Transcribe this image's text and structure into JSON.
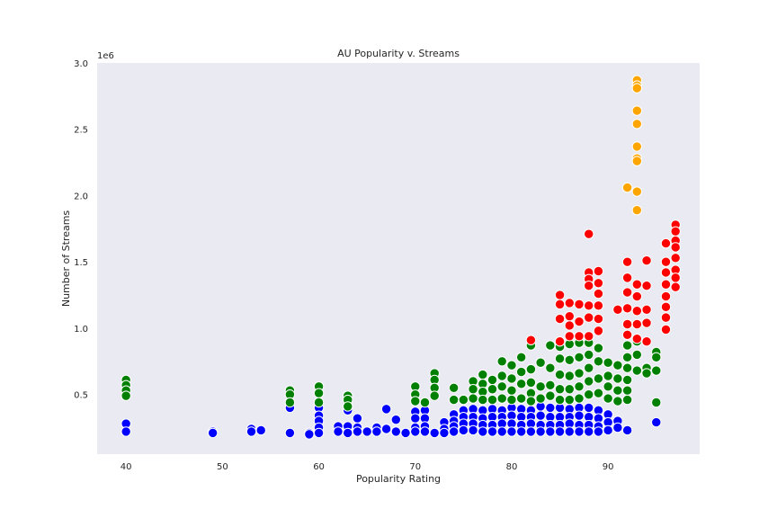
{
  "chart_data": {
    "type": "scatter",
    "title": "AU Popularity v. Streams",
    "xlabel": "Popularity Rating",
    "ylabel": "Number of Streams",
    "y_offset_label": "1e6",
    "xlim": [
      37,
      99.5
    ],
    "ylim": [
      50000,
      3000000
    ],
    "xticks": [
      40,
      50,
      60,
      70,
      80,
      90
    ],
    "yticks": [
      500000,
      1000000,
      1500000,
      2000000,
      2500000,
      3000000
    ],
    "ytick_labels": [
      "0.5",
      "1.0",
      "1.5",
      "2.0",
      "2.5",
      "3.0"
    ],
    "grid": false,
    "background": "#eaeaf2",
    "series": [
      {
        "color": "#0000ff",
        "points": [
          [
            40,
            280000
          ],
          [
            40,
            220000
          ],
          [
            49,
            220000
          ],
          [
            49,
            210000
          ],
          [
            53,
            240000
          ],
          [
            53,
            220000
          ],
          [
            54,
            230000
          ],
          [
            57,
            400000
          ],
          [
            57,
            210000
          ],
          [
            59,
            210000
          ],
          [
            59,
            200000
          ],
          [
            60,
            400000
          ],
          [
            60,
            340000
          ],
          [
            60,
            300000
          ],
          [
            60,
            250000
          ],
          [
            60,
            210000
          ],
          [
            62,
            260000
          ],
          [
            62,
            220000
          ],
          [
            63,
            380000
          ],
          [
            63,
            260000
          ],
          [
            63,
            210000
          ],
          [
            64,
            320000
          ],
          [
            64,
            250000
          ],
          [
            64,
            220000
          ],
          [
            65,
            220000
          ],
          [
            66,
            250000
          ],
          [
            66,
            220000
          ],
          [
            67,
            390000
          ],
          [
            67,
            240000
          ],
          [
            68,
            310000
          ],
          [
            68,
            220000
          ],
          [
            69,
            210000
          ],
          [
            70,
            370000
          ],
          [
            70,
            320000
          ],
          [
            70,
            250000
          ],
          [
            70,
            220000
          ],
          [
            71,
            380000
          ],
          [
            71,
            320000
          ],
          [
            71,
            260000
          ],
          [
            71,
            220000
          ],
          [
            72,
            210000
          ],
          [
            73,
            290000
          ],
          [
            73,
            240000
          ],
          [
            73,
            210000
          ],
          [
            74,
            350000
          ],
          [
            74,
            300000
          ],
          [
            74,
            260000
          ],
          [
            74,
            220000
          ],
          [
            75,
            380000
          ],
          [
            75,
            330000
          ],
          [
            75,
            280000
          ],
          [
            75,
            230000
          ],
          [
            76,
            390000
          ],
          [
            76,
            330000
          ],
          [
            76,
            280000
          ],
          [
            76,
            230000
          ],
          [
            77,
            380000
          ],
          [
            77,
            320000
          ],
          [
            77,
            270000
          ],
          [
            77,
            220000
          ],
          [
            78,
            390000
          ],
          [
            78,
            330000
          ],
          [
            78,
            270000
          ],
          [
            78,
            220000
          ],
          [
            79,
            380000
          ],
          [
            79,
            330000
          ],
          [
            79,
            280000
          ],
          [
            79,
            220000
          ],
          [
            80,
            400000
          ],
          [
            80,
            340000
          ],
          [
            80,
            280000
          ],
          [
            80,
            220000
          ],
          [
            81,
            390000
          ],
          [
            81,
            330000
          ],
          [
            81,
            270000
          ],
          [
            81,
            220000
          ],
          [
            82,
            380000
          ],
          [
            82,
            330000
          ],
          [
            82,
            280000
          ],
          [
            82,
            220000
          ],
          [
            83,
            410000
          ],
          [
            83,
            340000
          ],
          [
            83,
            270000
          ],
          [
            83,
            220000
          ],
          [
            84,
            400000
          ],
          [
            84,
            330000
          ],
          [
            84,
            270000
          ],
          [
            84,
            220000
          ],
          [
            85,
            400000
          ],
          [
            85,
            330000
          ],
          [
            85,
            270000
          ],
          [
            85,
            220000
          ],
          [
            86,
            390000
          ],
          [
            86,
            330000
          ],
          [
            86,
            280000
          ],
          [
            86,
            220000
          ],
          [
            87,
            400000
          ],
          [
            87,
            340000
          ],
          [
            87,
            270000
          ],
          [
            87,
            220000
          ],
          [
            88,
            400000
          ],
          [
            88,
            330000
          ],
          [
            88,
            270000
          ],
          [
            88,
            220000
          ],
          [
            89,
            380000
          ],
          [
            89,
            320000
          ],
          [
            89,
            260000
          ],
          [
            89,
            220000
          ],
          [
            90,
            350000
          ],
          [
            90,
            290000
          ],
          [
            90,
            230000
          ],
          [
            91,
            300000
          ],
          [
            91,
            250000
          ],
          [
            92,
            230000
          ],
          [
            95,
            290000
          ]
        ]
      },
      {
        "color": "#008000",
        "points": [
          [
            40,
            610000
          ],
          [
            40,
            570000
          ],
          [
            40,
            530000
          ],
          [
            40,
            490000
          ],
          [
            57,
            530000
          ],
          [
            57,
            500000
          ],
          [
            57,
            440000
          ],
          [
            60,
            560000
          ],
          [
            60,
            510000
          ],
          [
            60,
            440000
          ],
          [
            63,
            490000
          ],
          [
            63,
            460000
          ],
          [
            63,
            410000
          ],
          [
            70,
            560000
          ],
          [
            70,
            500000
          ],
          [
            70,
            450000
          ],
          [
            71,
            440000
          ],
          [
            72,
            660000
          ],
          [
            72,
            610000
          ],
          [
            72,
            550000
          ],
          [
            72,
            490000
          ],
          [
            74,
            550000
          ],
          [
            74,
            460000
          ],
          [
            75,
            460000
          ],
          [
            76,
            600000
          ],
          [
            76,
            540000
          ],
          [
            76,
            470000
          ],
          [
            77,
            650000
          ],
          [
            77,
            580000
          ],
          [
            77,
            520000
          ],
          [
            77,
            460000
          ],
          [
            78,
            610000
          ],
          [
            78,
            540000
          ],
          [
            78,
            460000
          ],
          [
            79,
            750000
          ],
          [
            79,
            640000
          ],
          [
            79,
            560000
          ],
          [
            79,
            470000
          ],
          [
            80,
            720000
          ],
          [
            80,
            620000
          ],
          [
            80,
            530000
          ],
          [
            80,
            460000
          ],
          [
            81,
            780000
          ],
          [
            81,
            670000
          ],
          [
            81,
            580000
          ],
          [
            81,
            470000
          ],
          [
            82,
            870000
          ],
          [
            82,
            690000
          ],
          [
            82,
            590000
          ],
          [
            82,
            510000
          ],
          [
            82,
            450000
          ],
          [
            83,
            740000
          ],
          [
            83,
            560000
          ],
          [
            83,
            470000
          ],
          [
            84,
            870000
          ],
          [
            84,
            700000
          ],
          [
            84,
            570000
          ],
          [
            84,
            490000
          ],
          [
            85,
            860000
          ],
          [
            85,
            770000
          ],
          [
            85,
            650000
          ],
          [
            85,
            540000
          ],
          [
            85,
            460000
          ],
          [
            86,
            880000
          ],
          [
            86,
            760000
          ],
          [
            86,
            640000
          ],
          [
            86,
            540000
          ],
          [
            86,
            460000
          ],
          [
            87,
            890000
          ],
          [
            87,
            780000
          ],
          [
            87,
            660000
          ],
          [
            87,
            560000
          ],
          [
            87,
            470000
          ],
          [
            88,
            890000
          ],
          [
            88,
            800000
          ],
          [
            88,
            700000
          ],
          [
            88,
            600000
          ],
          [
            88,
            500000
          ],
          [
            89,
            850000
          ],
          [
            89,
            750000
          ],
          [
            89,
            620000
          ],
          [
            89,
            510000
          ],
          [
            90,
            740000
          ],
          [
            90,
            640000
          ],
          [
            90,
            560000
          ],
          [
            90,
            470000
          ],
          [
            91,
            720000
          ],
          [
            91,
            620000
          ],
          [
            91,
            530000
          ],
          [
            91,
            450000
          ],
          [
            92,
            870000
          ],
          [
            92,
            780000
          ],
          [
            92,
            700000
          ],
          [
            92,
            610000
          ],
          [
            92,
            530000
          ],
          [
            92,
            460000
          ],
          [
            93,
            900000
          ],
          [
            93,
            800000
          ],
          [
            93,
            680000
          ],
          [
            94,
            700000
          ],
          [
            94,
            660000
          ],
          [
            95,
            820000
          ],
          [
            95,
            780000
          ],
          [
            95,
            680000
          ],
          [
            95,
            440000
          ]
        ]
      },
      {
        "color": "#ff0000",
        "points": [
          [
            82,
            910000
          ],
          [
            85,
            1250000
          ],
          [
            85,
            1180000
          ],
          [
            85,
            1070000
          ],
          [
            85,
            900000
          ],
          [
            86,
            1190000
          ],
          [
            86,
            1090000
          ],
          [
            86,
            1020000
          ],
          [
            86,
            940000
          ],
          [
            87,
            1180000
          ],
          [
            87,
            1050000
          ],
          [
            87,
            940000
          ],
          [
            88,
            1710000
          ],
          [
            88,
            1420000
          ],
          [
            88,
            1370000
          ],
          [
            88,
            1320000
          ],
          [
            88,
            1170000
          ],
          [
            88,
            1080000
          ],
          [
            88,
            940000
          ],
          [
            89,
            1430000
          ],
          [
            89,
            1340000
          ],
          [
            89,
            1260000
          ],
          [
            89,
            1170000
          ],
          [
            89,
            1070000
          ],
          [
            89,
            980000
          ],
          [
            91,
            1140000
          ],
          [
            92,
            1500000
          ],
          [
            92,
            1380000
          ],
          [
            92,
            1270000
          ],
          [
            92,
            1150000
          ],
          [
            92,
            1030000
          ],
          [
            92,
            950000
          ],
          [
            93,
            1330000
          ],
          [
            93,
            1240000
          ],
          [
            93,
            1130000
          ],
          [
            93,
            1030000
          ],
          [
            93,
            920000
          ],
          [
            94,
            1510000
          ],
          [
            94,
            1320000
          ],
          [
            94,
            1140000
          ],
          [
            94,
            1040000
          ],
          [
            94,
            900000
          ],
          [
            96,
            1640000
          ],
          [
            96,
            1500000
          ],
          [
            96,
            1420000
          ],
          [
            96,
            1330000
          ],
          [
            96,
            1240000
          ],
          [
            96,
            1160000
          ],
          [
            96,
            1080000
          ],
          [
            96,
            990000
          ],
          [
            97,
            1780000
          ],
          [
            97,
            1730000
          ],
          [
            97,
            1660000
          ],
          [
            97,
            1610000
          ],
          [
            97,
            1530000
          ],
          [
            97,
            1440000
          ],
          [
            97,
            1380000
          ],
          [
            97,
            1310000
          ]
        ]
      },
      {
        "color": "#ffa500",
        "points": [
          [
            93,
            2870000
          ],
          [
            93,
            2830000
          ],
          [
            93,
            2810000
          ],
          [
            93,
            2640000
          ],
          [
            93,
            2540000
          ],
          [
            93,
            2370000
          ],
          [
            93,
            2280000
          ],
          [
            93,
            2260000
          ],
          [
            93,
            2030000
          ],
          [
            93,
            1890000
          ],
          [
            92,
            2060000
          ]
        ]
      }
    ]
  }
}
